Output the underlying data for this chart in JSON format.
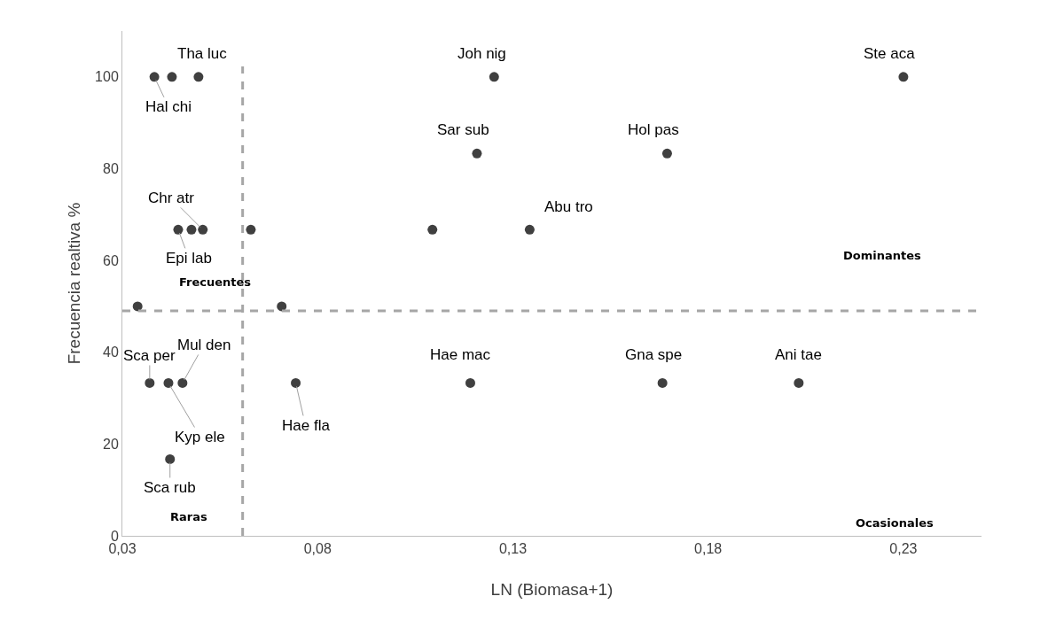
{
  "chart_data": {
    "type": "scatter",
    "xlabel": "LN (Biomasa+1)",
    "ylabel": "Frecuencia realtiva %",
    "x": [
      0.0382,
      0.0427,
      0.0495,
      0.1252,
      0.23,
      0.1208,
      0.1695,
      0.0443,
      0.0477,
      0.0506,
      0.0629,
      0.1094,
      0.1343,
      0.0339,
      0.0708,
      0.037,
      0.0418,
      0.0454,
      0.0744,
      0.1191,
      0.1683,
      0.2032,
      0.0422
    ],
    "values": [
      100,
      100,
      100,
      100,
      100,
      83.3,
      83.3,
      66.7,
      66.7,
      66.7,
      66.7,
      66.7,
      66.7,
      50,
      50,
      33.3,
      33.3,
      33.3,
      33.3,
      33.3,
      33.3,
      33.3,
      16.7
    ],
    "color": "#404040",
    "marker": "circle",
    "grid": false,
    "xlim": [
      0.03,
      0.25
    ],
    "xticks": [
      {
        "value": 0.03,
        "label": "0,03"
      },
      {
        "value": 0.08,
        "label": "0,08"
      },
      {
        "value": 0.13,
        "label": "0,13"
      },
      {
        "value": 0.18,
        "label": "0,18"
      },
      {
        "value": 0.23,
        "label": "0,23"
      }
    ],
    "ylim": [
      0,
      110
    ],
    "yticks": [
      0,
      20,
      40,
      60,
      80,
      100
    ],
    "ref_lines": [
      {
        "axis": "x",
        "value": 0.0608,
        "color": "#a6a6a6",
        "line_style": "dashed"
      },
      {
        "axis": "y",
        "value": 49,
        "color": "#a6a6a6",
        "line_style": "dashed"
      }
    ],
    "annotations": [
      {
        "text": "Hal chi",
        "x": 0.0382,
        "y": 100
      },
      {
        "text": "Tha luc",
        "x": 0.0495,
        "y": 100
      },
      {
        "text": "Joh nig",
        "x": 0.1252,
        "y": 100
      },
      {
        "text": "Ste aca",
        "x": 0.23,
        "y": 100
      },
      {
        "text": "Sar sub",
        "x": 0.1208,
        "y": 83.3
      },
      {
        "text": "Hol pas",
        "x": 0.1695,
        "y": 83.3
      },
      {
        "text": "Abu tro",
        "x": 0.1343,
        "y": 66.7
      },
      {
        "text": "Chr atr",
        "x": 0.0506,
        "y": 66.7
      },
      {
        "text": "Epi lab",
        "x": 0.0443,
        "y": 66.7
      },
      {
        "text": "Mul den",
        "x": 0.0454,
        "y": 33.3
      },
      {
        "text": "Sca per",
        "x": 0.037,
        "y": 33.3
      },
      {
        "text": "Kyp ele",
        "x": 0.0418,
        "y": 33.3
      },
      {
        "text": "Hae fla",
        "x": 0.0744,
        "y": 33.3
      },
      {
        "text": "Hae mac",
        "x": 0.1191,
        "y": 33.3
      },
      {
        "text": "Gna spe",
        "x": 0.1683,
        "y": 33.3
      },
      {
        "text": "Ani tae",
        "x": 0.2032,
        "y": 33.3
      },
      {
        "text": "Sca rub",
        "x": 0.0422,
        "y": 16.7
      },
      "Dominantes",
      "Frecuentes",
      "Raras",
      "Ocasionales"
    ]
  }
}
